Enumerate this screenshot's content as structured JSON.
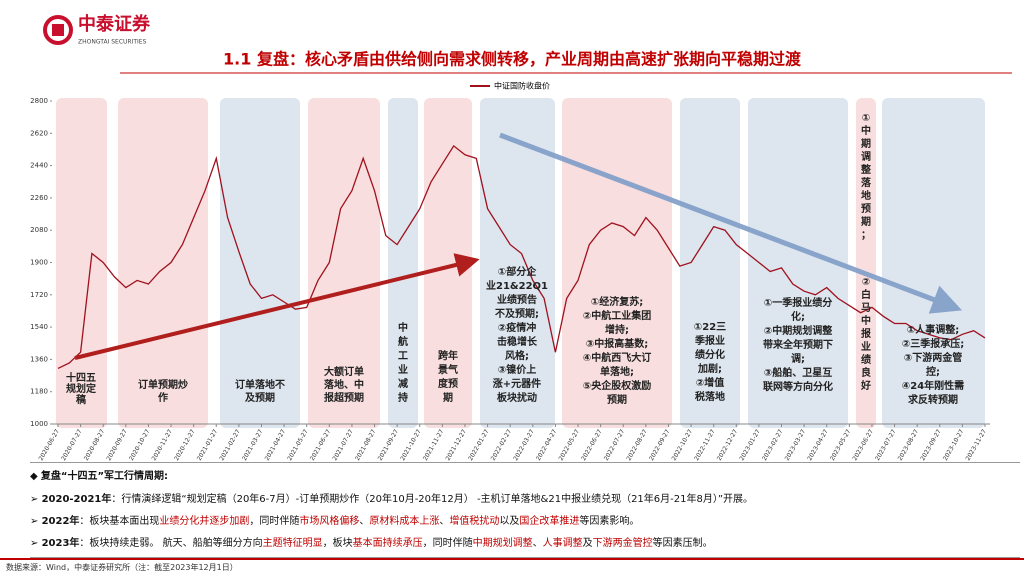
{
  "header": {
    "brand": "中泰证券",
    "brand_en": "ZHONGTAI SECURITIES",
    "title": "1.1 复盘：核心矛盾由供给侧向需求侧转移，产业周期由高速扩张期向平稳期过渡"
  },
  "chart_data": {
    "type": "line",
    "categories": [
      "2020-06-27",
      null,
      "2020-07-27",
      null,
      "2020-08-27",
      null,
      "2020-09-27",
      null,
      "2020-10-27",
      null,
      "2020-11-27",
      null,
      "2020-12-27",
      null,
      "2021-01-27",
      null,
      "2021-02-27",
      null,
      "2021-03-27",
      null,
      "2021-04-27",
      null,
      "2021-05-27",
      null,
      "2021-06-27",
      null,
      "2021-07-27",
      null,
      "2021-08-27",
      null,
      "2021-09-27",
      null,
      "2021-10-27",
      null,
      "2021-11-27",
      null,
      "2021-12-27",
      null,
      "2022-01-27",
      null,
      "2022-02-27",
      null,
      "2022-03-27",
      null,
      "2022-04-27",
      null,
      "2022-05-27",
      null,
      "2022-06-27",
      null,
      "2022-07-27",
      null,
      "2022-08-27",
      null,
      "2022-09-27",
      null,
      "2022-10-27",
      null,
      "2022-11-27",
      null,
      "2022-12-27",
      null,
      "2023-01-27",
      null,
      "2023-02-27",
      null,
      "2023-03-27",
      null,
      "2023-04-27",
      null,
      "2023-05-27",
      null,
      "2023-06-27",
      null,
      "2023-07-27",
      null,
      "2023-08-27",
      null,
      "2023-09-27",
      null,
      "2023-10-27",
      null,
      "2023-11-27"
    ],
    "series": [
      {
        "name": "中证国防收盘价",
        "color": "#a0111e",
        "values": [
          1310,
          1340,
          1400,
          1950,
          1900,
          1820,
          1760,
          1800,
          1780,
          1850,
          1900,
          2000,
          2150,
          2300,
          2480,
          2150,
          1960,
          1780,
          1700,
          1720,
          1680,
          1640,
          1650,
          1800,
          1900,
          2200,
          2300,
          2480,
          2300,
          2050,
          2000,
          2100,
          2200,
          2350,
          2450,
          2550,
          2500,
          2480,
          2200,
          2100,
          2000,
          1950,
          1800,
          1700,
          1400,
          1700,
          1800,
          2000,
          2080,
          2120,
          2100,
          2050,
          2150,
          2080,
          1980,
          1880,
          1900,
          2000,
          2100,
          2080,
          2000,
          1950,
          1900,
          1850,
          1870,
          1780,
          1740,
          1720,
          1760,
          1700,
          1660,
          1620,
          1650,
          1600,
          1560,
          1560,
          1520,
          1500,
          1480,
          1470,
          1500,
          1520,
          1480
        ]
      }
    ],
    "ylim": [
      1000,
      2800
    ],
    "yticks": [
      1000,
      1180,
      1360,
      1540,
      1720,
      1900,
      2080,
      2260,
      2440,
      2620,
      2800
    ],
    "annotations": [
      {
        "lines": [
          "十四五",
          "规划定",
          "稿"
        ]
      },
      {
        "lines": [
          "订单预期炒",
          "作"
        ]
      },
      {
        "lines": [
          "订单落地不",
          "及预期"
        ]
      },
      {
        "lines": [
          "大额订单",
          "落地、中",
          "报超预期"
        ]
      },
      {
        "lines": [
          "中",
          "航",
          "工",
          "业",
          "减",
          "持"
        ]
      },
      {
        "lines": [
          "跨年",
          "景气",
          "度预",
          "期"
        ]
      },
      {
        "lines": [
          "①部分企",
          "业21&22Q1",
          "业绩预告",
          "不及预期;",
          "②疫情冲",
          "击稳增长",
          "风格;",
          "③镍价上",
          "涨+元器件",
          "板块扰动"
        ]
      },
      {
        "lines": [
          "①经济复苏;",
          "②中航工业集团",
          "增持;",
          "③中报高基数;",
          "④中航西飞大订",
          "单落地;",
          "⑤央企股权激励",
          "预期"
        ]
      },
      {
        "lines": [
          "①22三",
          "季报业",
          "绩分化",
          "加剧;",
          "②增值",
          "税落地"
        ]
      },
      {
        "lines": [
          "①一季报业绩分",
          "化;",
          "②中期规划调整",
          "带来全年预期下",
          "调;",
          "③船舶、卫星互",
          "联网等方向分化"
        ]
      },
      {
        "lines": [
          "①",
          "中",
          "期",
          "调",
          "整",
          "落",
          "地",
          "预",
          "期",
          "；"
        ]
      },
      {
        "lines": [
          "②",
          "白",
          "马",
          "中",
          "报",
          "业",
          "绩",
          "良",
          "好"
        ]
      },
      {
        "lines": [
          "①人事调整;",
          "②三季报承压;",
          "③下游两金管",
          "控;",
          "④24年刚性需",
          "求反转预期"
        ]
      }
    ]
  },
  "summary": {
    "heading": {
      "marker": "◆",
      "text": "复盘“十四五”军工行情周期:"
    },
    "items": [
      {
        "marker": "➢",
        "segments": [
          {
            "text": "2020-2021年",
            "style": "bold"
          },
          {
            "text": "：行情演绎逻辑“规划定稿（20年6-7月）-订单预期炒作（20年10月-20年12月） -主机订单落地&21中报业绩兑现（21年6月-21年8月）”开展。",
            "style": "normal"
          }
        ]
      },
      {
        "marker": "➢",
        "segments": [
          {
            "text": "2022年",
            "style": "bold"
          },
          {
            "text": "：板块基本面出现",
            "style": "normal"
          },
          {
            "text": "业绩分化并逐步加剧",
            "style": "red"
          },
          {
            "text": "，同时伴随",
            "style": "normal"
          },
          {
            "text": "市场风格偏移",
            "style": "red"
          },
          {
            "text": "、",
            "style": "normal"
          },
          {
            "text": "原材料成本上涨",
            "style": "red"
          },
          {
            "text": "、",
            "style": "normal"
          },
          {
            "text": "增值税扰动",
            "style": "red"
          },
          {
            "text": "以及",
            "style": "normal"
          },
          {
            "text": "国企改革推进",
            "style": "red"
          },
          {
            "text": "等因素影响。",
            "style": "normal"
          }
        ]
      },
      {
        "marker": "➢",
        "segments": [
          {
            "text": "2023年",
            "style": "bold"
          },
          {
            "text": "：板块持续走弱。 航天、船舶等细分方向",
            "style": "normal"
          },
          {
            "text": "主题特征明显",
            "style": "red"
          },
          {
            "text": "，板块",
            "style": "normal"
          },
          {
            "text": "基本面持续承压",
            "style": "red"
          },
          {
            "text": "，同时伴随",
            "style": "normal"
          },
          {
            "text": "中期规划调整",
            "style": "red"
          },
          {
            "text": "、",
            "style": "normal"
          },
          {
            "text": "人事调整",
            "style": "red"
          },
          {
            "text": "及",
            "style": "normal"
          },
          {
            "text": "下游两金管控",
            "style": "red"
          },
          {
            "text": "等因素压制。",
            "style": "normal"
          }
        ]
      }
    ]
  },
  "footer": {
    "source": "数据来源：Wind，中泰证券研究所（注：截至2023年12月1日）"
  }
}
